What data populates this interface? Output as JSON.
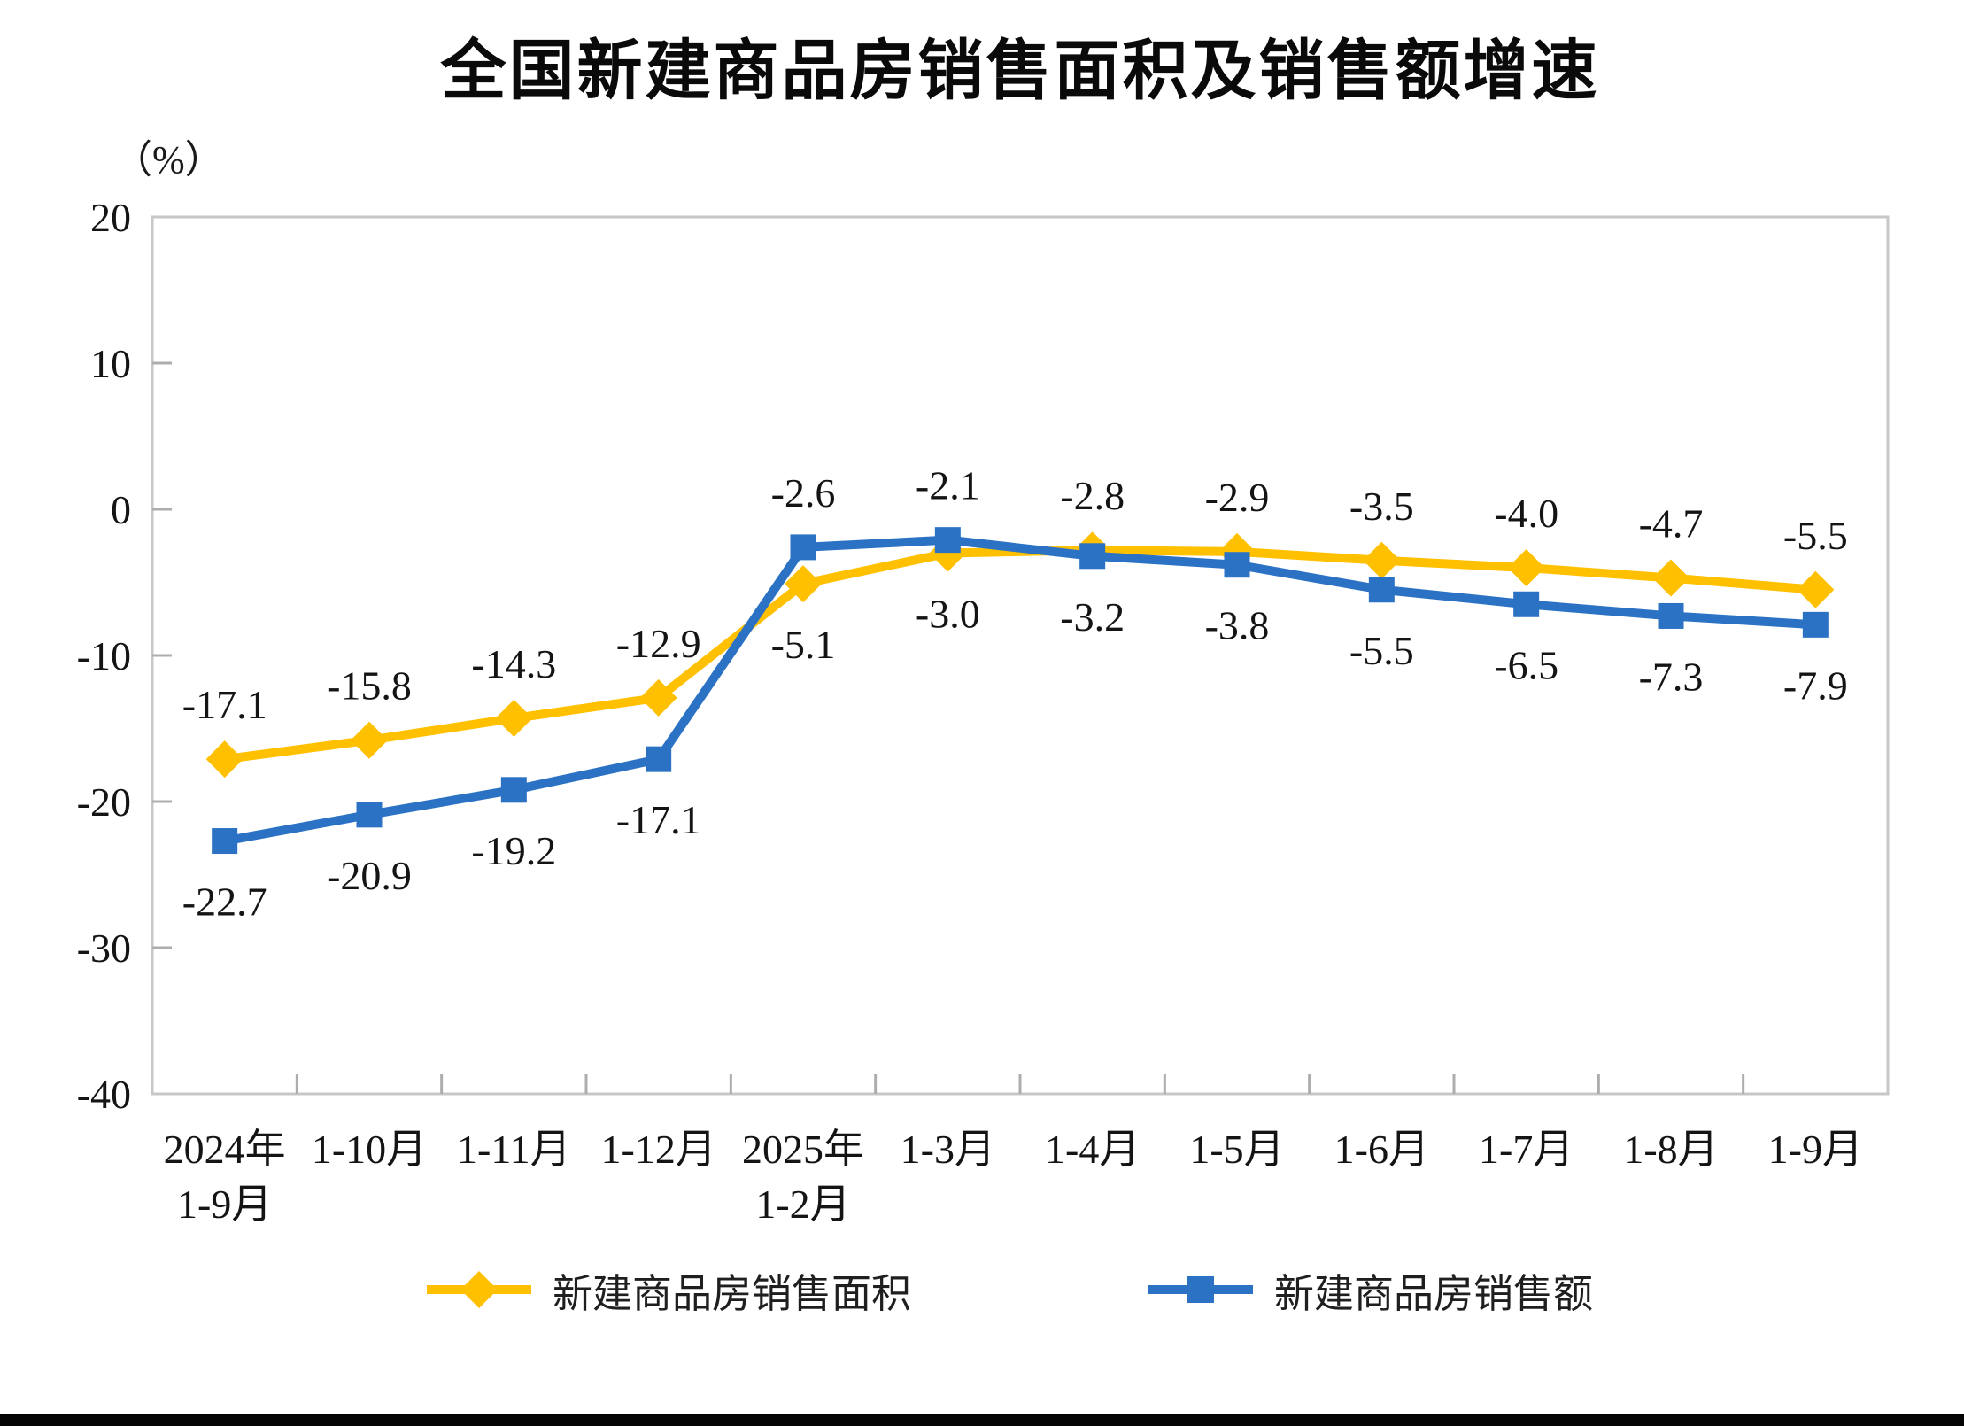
{
  "page": {
    "background": "#ffffff",
    "bottom_bar_color": "#050505"
  },
  "chart_data": {
    "type": "line",
    "title": "全国新建商品房销售面积及销售额增速",
    "unit_label": "（%）",
    "categories": [
      "2024年\n1-9月",
      "1-10月",
      "1-11月",
      "1-12月",
      "2025年\n1-2月",
      "1-3月",
      "1-4月",
      "1-5月",
      "1-6月",
      "1-7月",
      "1-8月",
      "1-9月"
    ],
    "series": [
      {
        "id": "sales-area",
        "name": "新建商品房销售面积",
        "color": "#FFC000",
        "marker": "diamond",
        "values": [
          -17.1,
          -15.8,
          -14.3,
          -12.9,
          -5.1,
          -3.0,
          -2.8,
          -2.9,
          -3.5,
          -4.0,
          -4.7,
          -5.5
        ]
      },
      {
        "id": "sales-value",
        "name": "新建商品房销售额",
        "color": "#2B72C4",
        "marker": "square",
        "values": [
          -22.7,
          -20.9,
          -19.2,
          -17.1,
          -2.6,
          -2.1,
          -3.2,
          -3.8,
          -5.5,
          -6.5,
          -7.3,
          -7.9
        ]
      }
    ],
    "ylim": [
      -40,
      20
    ],
    "y_step": 10,
    "grid": false,
    "legend_position": "bottom",
    "data_labels": true,
    "label_decimals": 1,
    "axis_color": "#C7C7C7",
    "tick_color": "#ADADAD",
    "label_color": "#141414"
  }
}
